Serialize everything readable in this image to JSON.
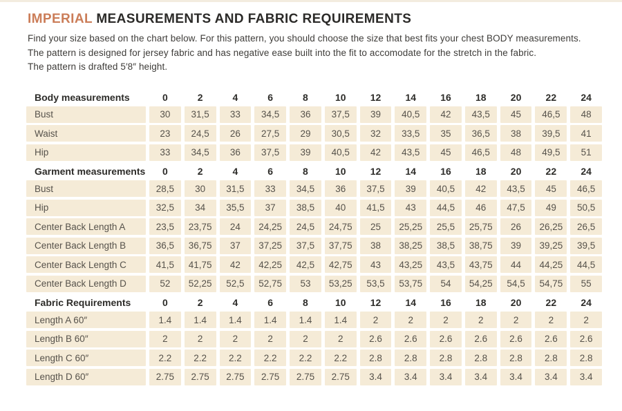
{
  "header": {
    "title_highlight": "IMPERIAL",
    "title_rest": " MEASUREMENTS AND FABRIC REQUIREMENTS",
    "intro_lines": [
      "Find your size based on the chart below. For this pattern, you should choose the size that best fits your chest BODY measurements.",
      "The pattern is designed for jersey fabric and has negative ease built into the fit to accomodate for the stretch in the fabric.",
      "The pattern is drafted 5′8″ height."
    ]
  },
  "colors": {
    "accent_title": "#cb7d58",
    "cell_background": "#f5ebd7",
    "cell_text": "#56524b",
    "header_text": "#2d2c29",
    "page_background": "#ffffff"
  },
  "table": {
    "sizes": [
      "0",
      "2",
      "4",
      "6",
      "8",
      "10",
      "12",
      "14",
      "16",
      "18",
      "20",
      "22",
      "24"
    ],
    "sections": [
      {
        "header": "Body measurements",
        "rows": [
          {
            "label": "Bust",
            "values": [
              "30",
              "31,5",
              "33",
              "34,5",
              "36",
              "37,5",
              "39",
              "40,5",
              "42",
              "43,5",
              "45",
              "46,5",
              "48"
            ]
          },
          {
            "label": "Waist",
            "values": [
              "23",
              "24,5",
              "26",
              "27,5",
              "29",
              "30,5",
              "32",
              "33,5",
              "35",
              "36,5",
              "38",
              "39,5",
              "41"
            ]
          },
          {
            "label": "Hip",
            "values": [
              "33",
              "34,5",
              "36",
              "37,5",
              "39",
              "40,5",
              "42",
              "43,5",
              "45",
              "46,5",
              "48",
              "49,5",
              "51"
            ]
          }
        ]
      },
      {
        "header": "Garment measurements",
        "rows": [
          {
            "label": "Bust",
            "values": [
              "28,5",
              "30",
              "31,5",
              "33",
              "34,5",
              "36",
              "37,5",
              "39",
              "40,5",
              "42",
              "43,5",
              "45",
              "46,5"
            ]
          },
          {
            "label": "Hip",
            "values": [
              "32,5",
              "34",
              "35,5",
              "37",
              "38,5",
              "40",
              "41,5",
              "43",
              "44,5",
              "46",
              "47,5",
              "49",
              "50,5"
            ]
          },
          {
            "label": "Center Back Length A",
            "values": [
              "23,5",
              "23,75",
              "24",
              "24,25",
              "24,5",
              "24,75",
              "25",
              "25,25",
              "25,5",
              "25,75",
              "26",
              "26,25",
              "26,5"
            ]
          },
          {
            "label": "Center Back Length B",
            "values": [
              "36,5",
              "36,75",
              "37",
              "37,25",
              "37,5",
              "37,75",
              "38",
              "38,25",
              "38,5",
              "38,75",
              "39",
              "39,25",
              "39,5"
            ]
          },
          {
            "label": "Center Back Length C",
            "values": [
              "41,5",
              "41,75",
              "42",
              "42,25",
              "42,5",
              "42,75",
              "43",
              "43,25",
              "43,5",
              "43,75",
              "44",
              "44,25",
              "44,5"
            ]
          },
          {
            "label": "Center Back Length D",
            "values": [
              "52",
              "52,25",
              "52,5",
              "52,75",
              "53",
              "53,25",
              "53,5",
              "53,75",
              "54",
              "54,25",
              "54,5",
              "54,75",
              "55"
            ]
          }
        ]
      },
      {
        "header": "Fabric Requirements",
        "rows": [
          {
            "label": "Length A 60″",
            "values": [
              "1.4",
              "1.4",
              "1.4",
              "1.4",
              "1.4",
              "1.4",
              "2",
              "2",
              "2",
              "2",
              "2",
              "2",
              "2"
            ]
          },
          {
            "label": "Length B 60″",
            "values": [
              "2",
              "2",
              "2",
              "2",
              "2",
              "2",
              "2.6",
              "2.6",
              "2.6",
              "2.6",
              "2.6",
              "2.6",
              "2.6"
            ]
          },
          {
            "label": "Length C 60″",
            "values": [
              "2.2",
              "2.2",
              "2.2",
              "2.2",
              "2.2",
              "2.2",
              "2.8",
              "2.8",
              "2.8",
              "2.8",
              "2.8",
              "2.8",
              "2.8"
            ]
          },
          {
            "label": "Length D 60″",
            "values": [
              "2.75",
              "2.75",
              "2.75",
              "2.75",
              "2.75",
              "2.75",
              "3.4",
              "3.4",
              "3.4",
              "3.4",
              "3.4",
              "3.4",
              "3.4"
            ]
          }
        ]
      }
    ]
  }
}
